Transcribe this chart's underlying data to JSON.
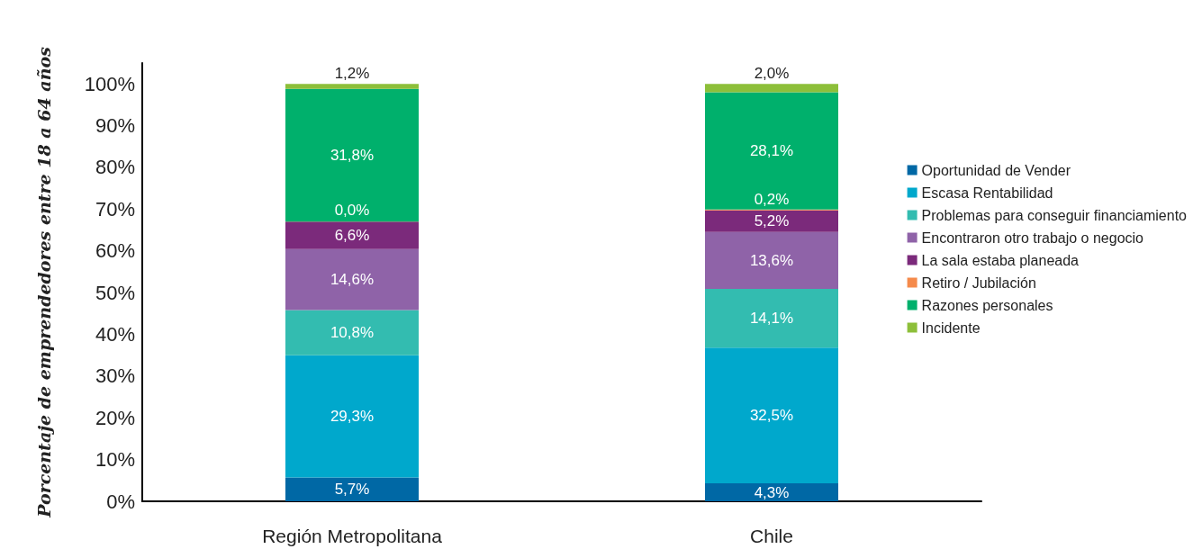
{
  "chart_data": {
    "type": "bar",
    "stacked": true,
    "ylabel": "Porcentaje de emprendedores entre 18 a 64 años",
    "categories": [
      "Región Metropolitana",
      "Chile"
    ],
    "ylim": [
      0,
      105
    ],
    "yticks": [
      {
        "value": 0,
        "label": "0%"
      },
      {
        "value": 10,
        "label": "10%"
      },
      {
        "value": 20,
        "label": "20%"
      },
      {
        "value": 30,
        "label": "30%"
      },
      {
        "value": 40,
        "label": "40%"
      },
      {
        "value": 50,
        "label": "50%"
      },
      {
        "value": 60,
        "label": "60%"
      },
      {
        "value": 70,
        "label": "70%"
      },
      {
        "value": 80,
        "label": "80%"
      },
      {
        "value": 90,
        "label": "90%"
      },
      {
        "value": 100,
        "label": "100%"
      }
    ],
    "grid": false,
    "legend": "right",
    "series": [
      {
        "name": "Oportunidad de Vender",
        "color": "#0068a5",
        "values": [
          5.7,
          4.3
        ],
        "value_labels": [
          "5,7%",
          "4,3%"
        ]
      },
      {
        "name": "Escasa Rentabilidad",
        "color": "#00a8cc",
        "values": [
          29.3,
          32.5
        ],
        "value_labels": [
          "29,3%",
          "32,5%"
        ]
      },
      {
        "name": "Problemas para conseguir financiamiento",
        "color": "#33bcb0",
        "values": [
          10.8,
          14.1
        ],
        "value_labels": [
          "10,8%",
          "14,1%"
        ]
      },
      {
        "name": "Encontraron otro trabajo o negocio",
        "color": "#8f63a8",
        "values": [
          14.6,
          13.6
        ],
        "value_labels": [
          "14,6%",
          "13,6%"
        ]
      },
      {
        "name": "La sala estaba planeada",
        "color": "#7b2a7b",
        "values": [
          6.6,
          5.2
        ],
        "value_labels": [
          "6,6%",
          "5,2%"
        ]
      },
      {
        "name": "Retiro / Jubilación",
        "color": "#f58a4b",
        "values": [
          0.0,
          0.2
        ],
        "value_labels": [
          "0,0%",
          "0,2%"
        ]
      },
      {
        "name": "Razones personales",
        "color": "#00b06c",
        "values": [
          31.8,
          28.1
        ],
        "value_labels": [
          "31,8%",
          "28,1%"
        ]
      },
      {
        "name": "Incidente",
        "color": "#8dbf3a",
        "values": [
          1.2,
          2.0
        ],
        "value_labels": [
          "1,2%",
          "2,0%"
        ]
      }
    ]
  }
}
